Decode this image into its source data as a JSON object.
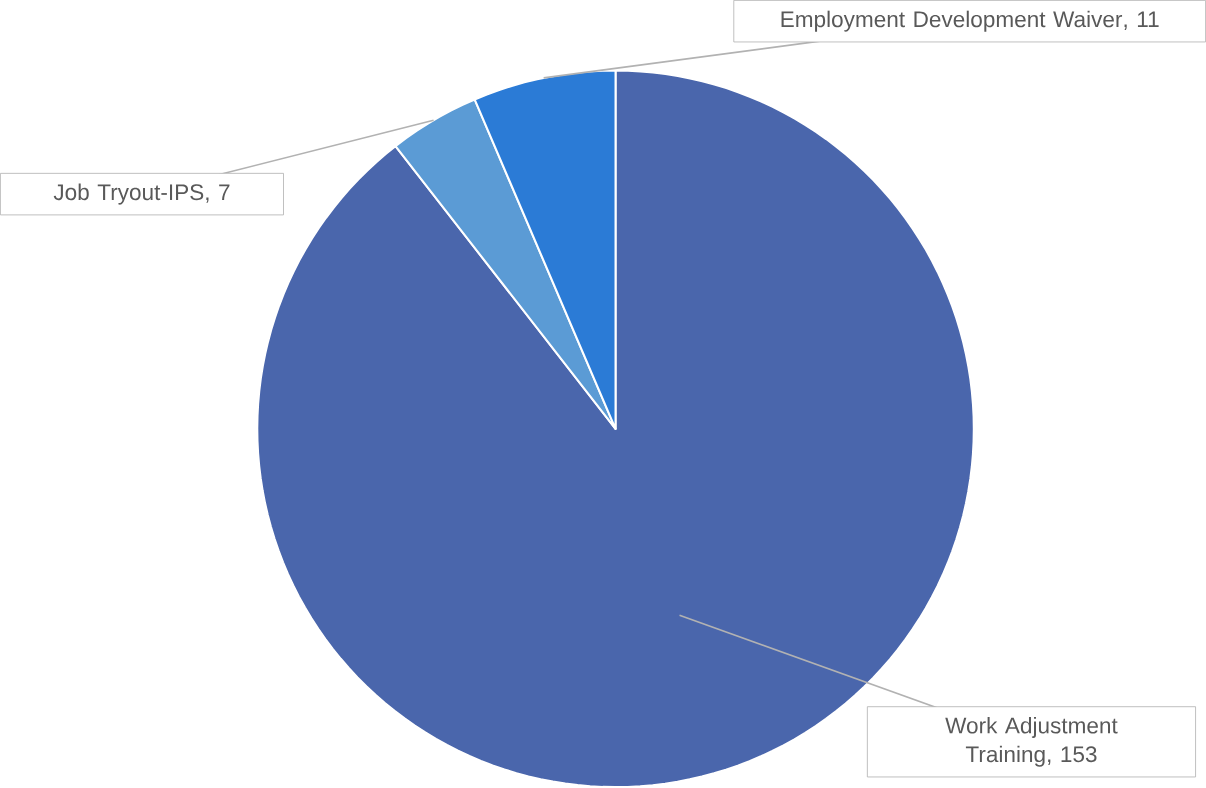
{
  "chart_data": {
    "type": "pie",
    "categories": [
      "Work Adjustment Training",
      "Job Tryout-IPS",
      "Employment Development Waiver"
    ],
    "values": [
      153,
      7,
      11
    ],
    "colors": [
      "#4a66ac",
      "#5b9bd5",
      "#2b7bd6"
    ],
    "value_labels": [
      ", 153",
      ", 7",
      ", 11"
    ]
  }
}
